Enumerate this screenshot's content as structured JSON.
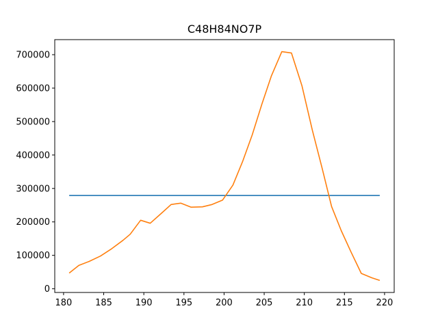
{
  "chart_data": {
    "type": "line",
    "title": "C48H84NO7P",
    "xlabel": "",
    "ylabel": "",
    "xlim": [
      178.9,
      221.2
    ],
    "ylim": [
      -11000,
      745000
    ],
    "x_ticks": [
      180,
      185,
      190,
      195,
      200,
      205,
      210,
      215,
      220
    ],
    "y_ticks": [
      0,
      100000,
      200000,
      300000,
      400000,
      500000,
      600000,
      700000
    ],
    "grid": false,
    "series": [
      {
        "color": "#1f77b4",
        "x": [
          180.7,
          219.4
        ],
        "y": [
          279000,
          279000
        ]
      },
      {
        "color": "#ff7f0e",
        "x": [
          180.7,
          181.9,
          183.2,
          184.6,
          186.0,
          187.4,
          188.3,
          189.6,
          190.8,
          192.2,
          193.4,
          194.6,
          195.9,
          197.3,
          198.5,
          199.8,
          201.1,
          202.3,
          203.5,
          204.7,
          205.9,
          207.2,
          208.4,
          209.7,
          211.0,
          212.2,
          213.4,
          214.6,
          215.8,
          217.1,
          218.4,
          219.4
        ],
        "y": [
          47000,
          70000,
          82000,
          98000,
          120000,
          145000,
          163000,
          205000,
          196000,
          226000,
          252000,
          256000,
          244000,
          245000,
          252000,
          265000,
          310000,
          380000,
          460000,
          551000,
          637000,
          709000,
          705000,
          607000,
          474000,
          362000,
          246000,
          174000,
          111000,
          46000,
          33000,
          25000
        ]
      }
    ]
  }
}
